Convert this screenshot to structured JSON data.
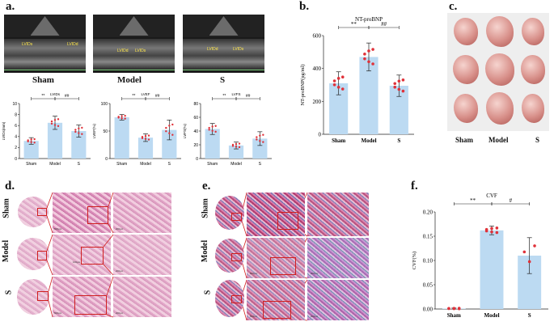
{
  "panels": {
    "a": "a.",
    "b": "b.",
    "c": "c.",
    "d": "d.",
    "e": "e.",
    "f": "f."
  },
  "groups": [
    "Sham",
    "Model",
    "S"
  ],
  "echo_markers": {
    "sham": [
      "LVIDs",
      "LVIDd"
    ],
    "model": [
      "LVIDd",
      "LVIDs"
    ],
    "s": [
      "LVIDd",
      "LVIDs"
    ]
  },
  "histology": {
    "scalebar_1": "500μm",
    "scalebar_2": "100μm",
    "scalebar_3": "200μm"
  },
  "heart_labels": [
    "Sham",
    "Model",
    "S"
  ],
  "chart_data": [
    {
      "id": "lvids",
      "type": "bar",
      "title": "LVIDs",
      "ylabel": "LVIDs(mm)",
      "categories": [
        "Sham",
        "Model",
        "S"
      ],
      "values": [
        3.2,
        6.5,
        5.0
      ],
      "errors": [
        0.6,
        1.2,
        1.1
      ],
      "ylim": [
        0,
        10
      ],
      "yticks": [
        "0",
        "2",
        "4",
        "6",
        "8",
        "10"
      ],
      "bar_color": "#bcdaf2",
      "point_color": "#e0323a",
      "annotations": [
        {
          "from": 0,
          "to": 1,
          "text": "**"
        },
        {
          "from": 1,
          "to": 2,
          "text": "##"
        }
      ]
    },
    {
      "id": "lvef",
      "type": "bar",
      "title": "LVEF",
      "ylabel": "LVEF(%)",
      "categories": [
        "Sham",
        "Model",
        "S"
      ],
      "values": [
        75,
        38,
        52
      ],
      "errors": [
        5,
        7,
        18
      ],
      "ylim": [
        0,
        100
      ],
      "yticks": [
        "0",
        "50",
        "100"
      ],
      "bar_color": "#bcdaf2",
      "point_color": "#e0323a",
      "annotations": [
        {
          "from": 0,
          "to": 1,
          "text": "**"
        },
        {
          "from": 1,
          "to": 2,
          "text": "##"
        }
      ]
    },
    {
      "id": "lvfs",
      "type": "bar",
      "title": "LVFS",
      "ylabel": "LVFS(%)",
      "categories": [
        "Sham",
        "Model",
        "S"
      ],
      "values": [
        43,
        19,
        29
      ],
      "errors": [
        8,
        5,
        10
      ],
      "ylim": [
        0,
        80
      ],
      "yticks": [
        "0",
        "20",
        "40",
        "60",
        "80"
      ],
      "bar_color": "#bcdaf2",
      "point_color": "#e0323a",
      "annotations": [
        {
          "from": 0,
          "to": 1,
          "text": "**"
        },
        {
          "from": 1,
          "to": 2,
          "text": "##"
        }
      ]
    },
    {
      "id": "ntprobnp",
      "type": "bar",
      "title": "NT-proBNP",
      "ylabel": "NT-proBNP(pg/ml)",
      "categories": [
        "Sham",
        "Model",
        "S"
      ],
      "values": [
        310,
        470,
        295
      ],
      "errors": [
        70,
        85,
        65
      ],
      "ylim": [
        0,
        600
      ],
      "yticks": [
        "0",
        "200",
        "400",
        "600"
      ],
      "bar_color": "#bcdaf2",
      "point_color": "#e0323a",
      "annotations": [
        {
          "from": 0,
          "to": 1,
          "text": "**"
        },
        {
          "from": 1,
          "to": 2,
          "text": "##"
        }
      ]
    },
    {
      "id": "cvf",
      "type": "bar",
      "title": "CVF",
      "ylabel": "CVF(%)",
      "categories": [
        "Sham",
        "Model",
        "S"
      ],
      "values": [
        0.001,
        0.162,
        0.11
      ],
      "errors": [
        0.001,
        0.009,
        0.037
      ],
      "ylim": [
        0,
        0.2
      ],
      "yticks": [
        "0.00",
        "0.05",
        "0.10",
        "0.15",
        "0.20"
      ],
      "bar_color": "#bcdaf2",
      "point_color": "#e0323a",
      "annotations": [
        {
          "from": 0,
          "to": 1,
          "text": "**"
        },
        {
          "from": 1,
          "to": 2,
          "text": "#"
        }
      ]
    }
  ]
}
